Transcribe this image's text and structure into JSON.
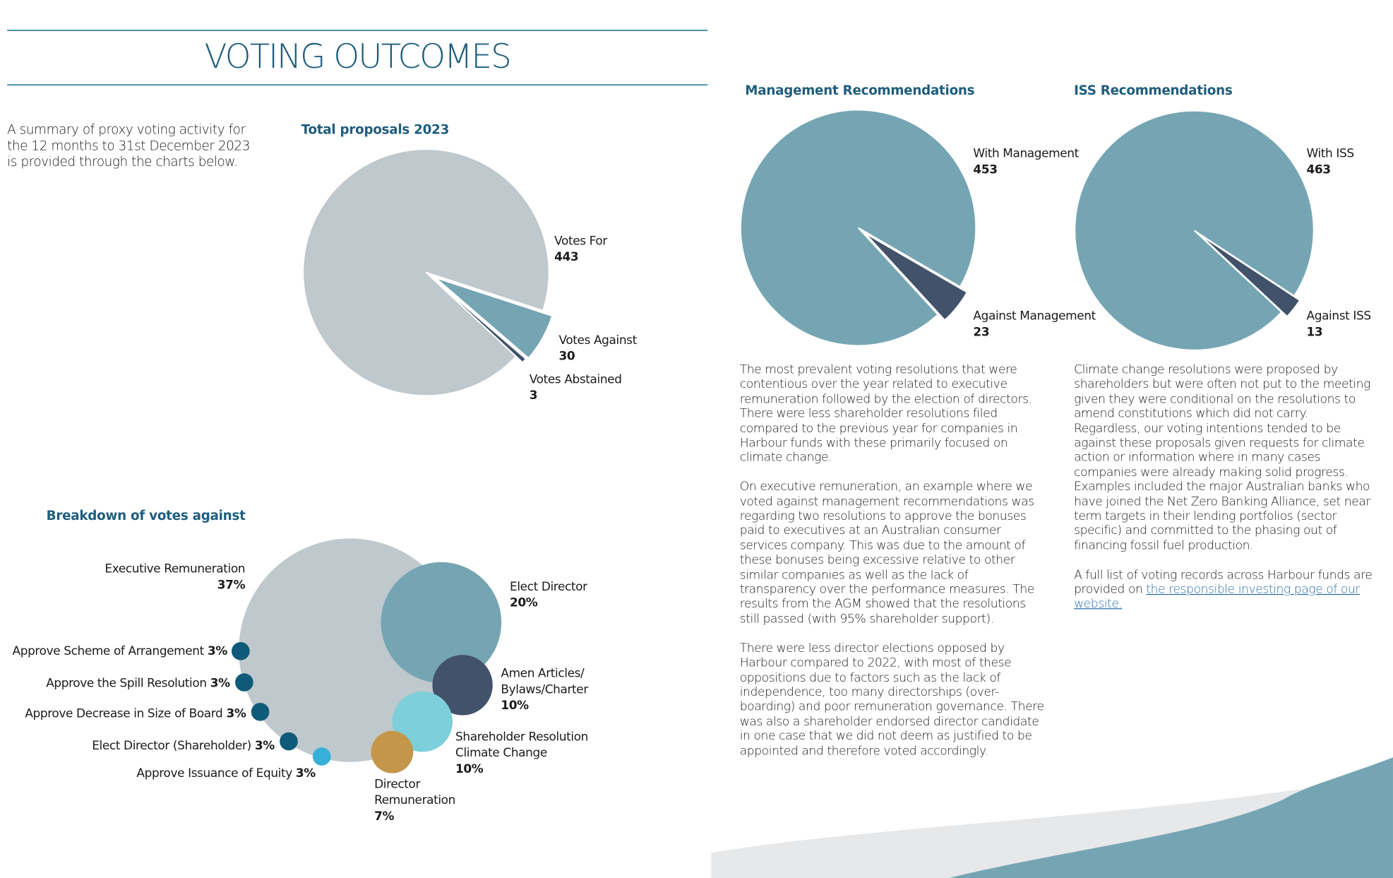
{
  "title": "VOTING OUTCOMES",
  "intro": "A summary of proxy voting activity for the 12 months to 31st December 2023 is provided through the charts below.",
  "chart_data": [
    {
      "type": "pie",
      "title": "Total proposals 2023",
      "categories": [
        "Votes For",
        "Votes Against",
        "Votes Abstained"
      ],
      "values": [
        443,
        30,
        3
      ],
      "colors": [
        "#bfc8cc",
        "#75a5b3",
        "#41526a"
      ]
    },
    {
      "type": "pie",
      "title": "Management Recommendations",
      "categories": [
        "With Management",
        "Against Management"
      ],
      "values": [
        453,
        23
      ],
      "colors": [
        "#75a5b3",
        "#41526a"
      ]
    },
    {
      "type": "pie",
      "title": "ISS Recommendations",
      "categories": [
        "With ISS",
        "Against ISS"
      ],
      "values": [
        463,
        13
      ],
      "colors": [
        "#75a5b3",
        "#41526a"
      ]
    },
    {
      "type": "bubble",
      "title": "Breakdown of votes against",
      "categories": [
        "Executive Remuneration",
        "Elect Director",
        "Amen Articles/ Bylaws/Charter",
        "Shareholder Resolution Climate Change",
        "Director Remuneration",
        "Approve Scheme of Arrangement",
        "Approve the Spill Resolution",
        "Approve Decrease in Size of Board",
        "Elect Director (Shareholder)",
        "Approve Issuance of Equity"
      ],
      "values": [
        37,
        20,
        10,
        10,
        7,
        3,
        3,
        3,
        3,
        3
      ],
      "value_labels": [
        "37%",
        "20%",
        "10%",
        "10%",
        "7%",
        "3%",
        "3%",
        "3%",
        "3%",
        "3%"
      ],
      "colors": [
        "#bfc8cc",
        "#75a5b3",
        "#41526a",
        "#7dcfd9",
        "#c4964a",
        "#0e5a78",
        "#0e5a78",
        "#0e5a78",
        "#0e5a78",
        "#36b0d6"
      ]
    }
  ],
  "paragraphs_left": [
    "The most prevalent voting resolutions that were contentious over the year related to executive remuneration followed by the election of directors. There were less shareholder resolutions filed compared to the previous year for companies in Harbour funds with these primarily focused on climate change.",
    "On executive remuneration, an example where we voted against management recommendations was regarding two resolutions to approve the bonuses paid to executives at an Australian consumer services company. This was due to the amount of these bonuses being excessive relative to other similar companies as well as the lack of transparency over the performance measures. The results from the AGM showed that the resolutions still passed (with 95% shareholder support).",
    "There were less director elections opposed by Harbour compared to 2022, with most of these oppositions due to factors such as the lack of independence, too many directorships (over-boarding) and poor remuneration governance. There was also a shareholder endorsed director candidate in one case that we did not deem as justified to be appointed and therefore voted accordingly."
  ],
  "paragraphs_right": [
    "Climate change resolutions were proposed by shareholders but were often not put to the meeting given they were conditional on the resolutions to amend constitutions which did not carry. Regardless, our voting intentions tended to be against these proposals given requests for climate action or information where in many cases companies were already making solid progress. Examples included the major Australian banks who have joined the Net Zero Banking Alliance, set near term targets in their lending portfolios (sector specific) and committed to the phasing out of financing fossil fuel production.",
    "A full list of voting records across Harbour funds are provided on "
  ],
  "link": "the responsible investing page of our website."
}
